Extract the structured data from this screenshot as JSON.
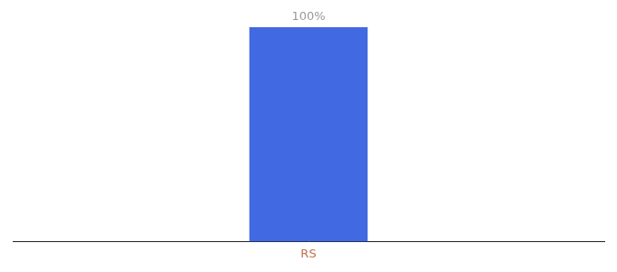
{
  "chart_data": {
    "type": "bar",
    "categories": [
      "RS"
    ],
    "values": [
      100
    ],
    "value_labels": [
      "100%"
    ],
    "data_labels": true,
    "color": "#4169e1",
    "ylim": [
      0,
      100
    ],
    "grid": false,
    "tick_labels": "x"
  }
}
